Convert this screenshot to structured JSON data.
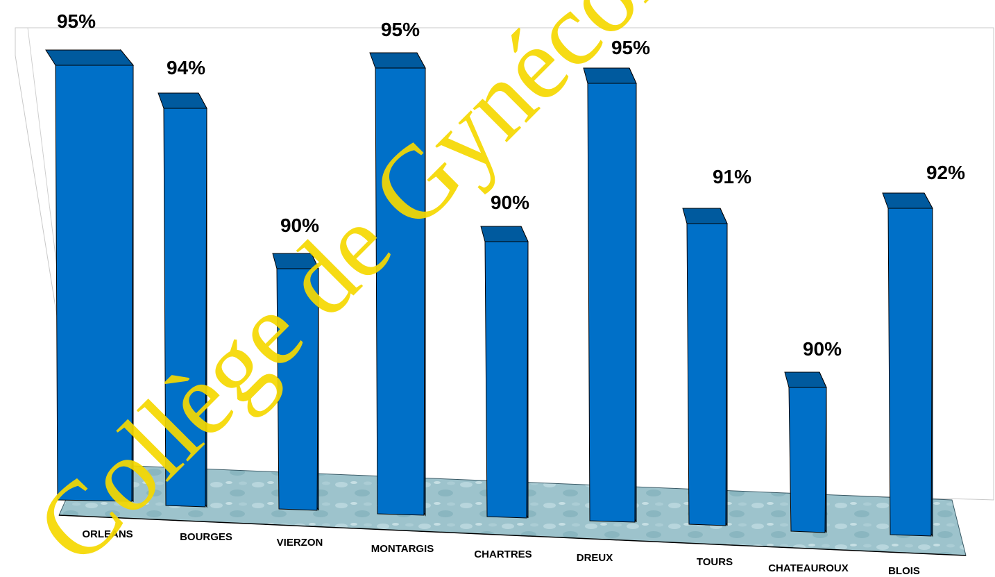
{
  "chart_data": {
    "type": "bar",
    "style": "3d-column",
    "categories": [
      "ORLEANS",
      "BOURGES",
      "VIERZON",
      "MONTARGIS",
      "CHARTRES",
      "DREUX",
      "TOURS",
      "CHATEAUROUX",
      "BLOIS"
    ],
    "values": [
      95,
      94,
      90,
      95,
      90,
      95,
      91,
      90,
      92
    ],
    "data_labels": [
      "95%",
      "94%",
      "90%",
      "95%",
      "90%",
      "95%",
      "91%",
      "90%",
      "92%"
    ],
    "title": "",
    "xlabel": "",
    "ylabel": "",
    "ylim": [
      80,
      96
    ],
    "grid": false,
    "legend": "none",
    "colors": {
      "bar_front": "#0070c8",
      "bar_side": "#004c8c",
      "bar_top": "#005a9e",
      "floor": "#9fc4cd",
      "watermark": "#f5d800"
    }
  },
  "watermark": "Collège de Gynécologie"
}
